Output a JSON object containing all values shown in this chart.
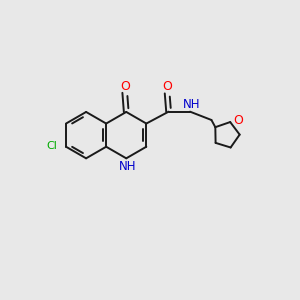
{
  "background_color": "#e8e8e8",
  "bond_color": "#1a1a1a",
  "atom_colors": {
    "O": "#ff0000",
    "N": "#0000cc",
    "Cl": "#00aa00",
    "C": "#1a1a1a"
  },
  "figsize": [
    3.0,
    3.0
  ],
  "dpi": 100
}
